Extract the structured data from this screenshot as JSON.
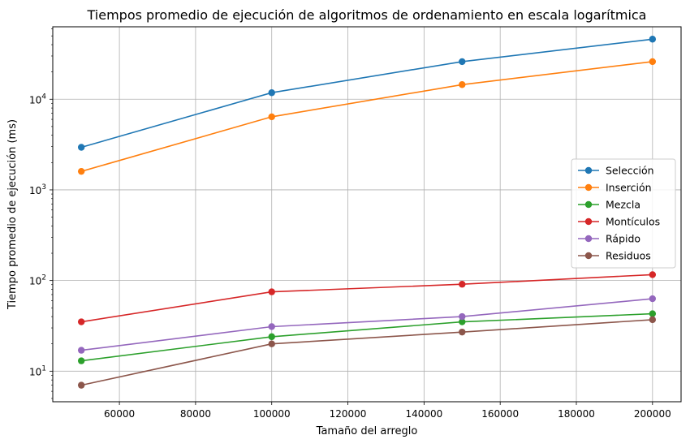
{
  "chart_data": {
    "type": "line",
    "title": "Tiempos promedio de ejecución de algoritmos de ordenamiento en escala logarítmica",
    "xlabel": "Tamaño del arreglo",
    "ylabel": "Tiempo promedio de ejecución (ms)",
    "yscale": "log",
    "grid": true,
    "legend_position": "center-right",
    "x": [
      50000,
      100000,
      150000,
      200000
    ],
    "xlim": [
      42500,
      207500
    ],
    "ylim": [
      4.6,
      63000
    ],
    "x_ticks": [
      60000,
      80000,
      100000,
      120000,
      140000,
      160000,
      180000,
      200000
    ],
    "x_tick_labels": [
      "60000",
      "80000",
      "100000",
      "120000",
      "140000",
      "160000",
      "180000",
      "200000"
    ],
    "y_ticks": [
      10,
      100,
      1000,
      10000
    ],
    "y_tick_labels": [
      {
        "base": "10",
        "exp": "1"
      },
      {
        "base": "10",
        "exp": "2"
      },
      {
        "base": "10",
        "exp": "3"
      },
      {
        "base": "10",
        "exp": "4"
      }
    ],
    "series": [
      {
        "name": "Selección",
        "color": "#1f77b4",
        "values": [
          2950,
          11800,
          26000,
          46000
        ]
      },
      {
        "name": "Inserción",
        "color": "#ff7f0e",
        "values": [
          1600,
          6400,
          14500,
          26000
        ]
      },
      {
        "name": "Mezcla",
        "color": "#2ca02c",
        "values": [
          13,
          24,
          35,
          43
        ]
      },
      {
        "name": "Montículos",
        "color": "#d62728",
        "values": [
          35,
          75,
          91,
          116
        ]
      },
      {
        "name": "Rápido",
        "color": "#9467bd",
        "values": [
          17,
          31,
          40,
          63
        ]
      },
      {
        "name": "Residuos",
        "color": "#8c564b",
        "values": [
          7,
          20,
          27,
          37
        ]
      }
    ]
  }
}
